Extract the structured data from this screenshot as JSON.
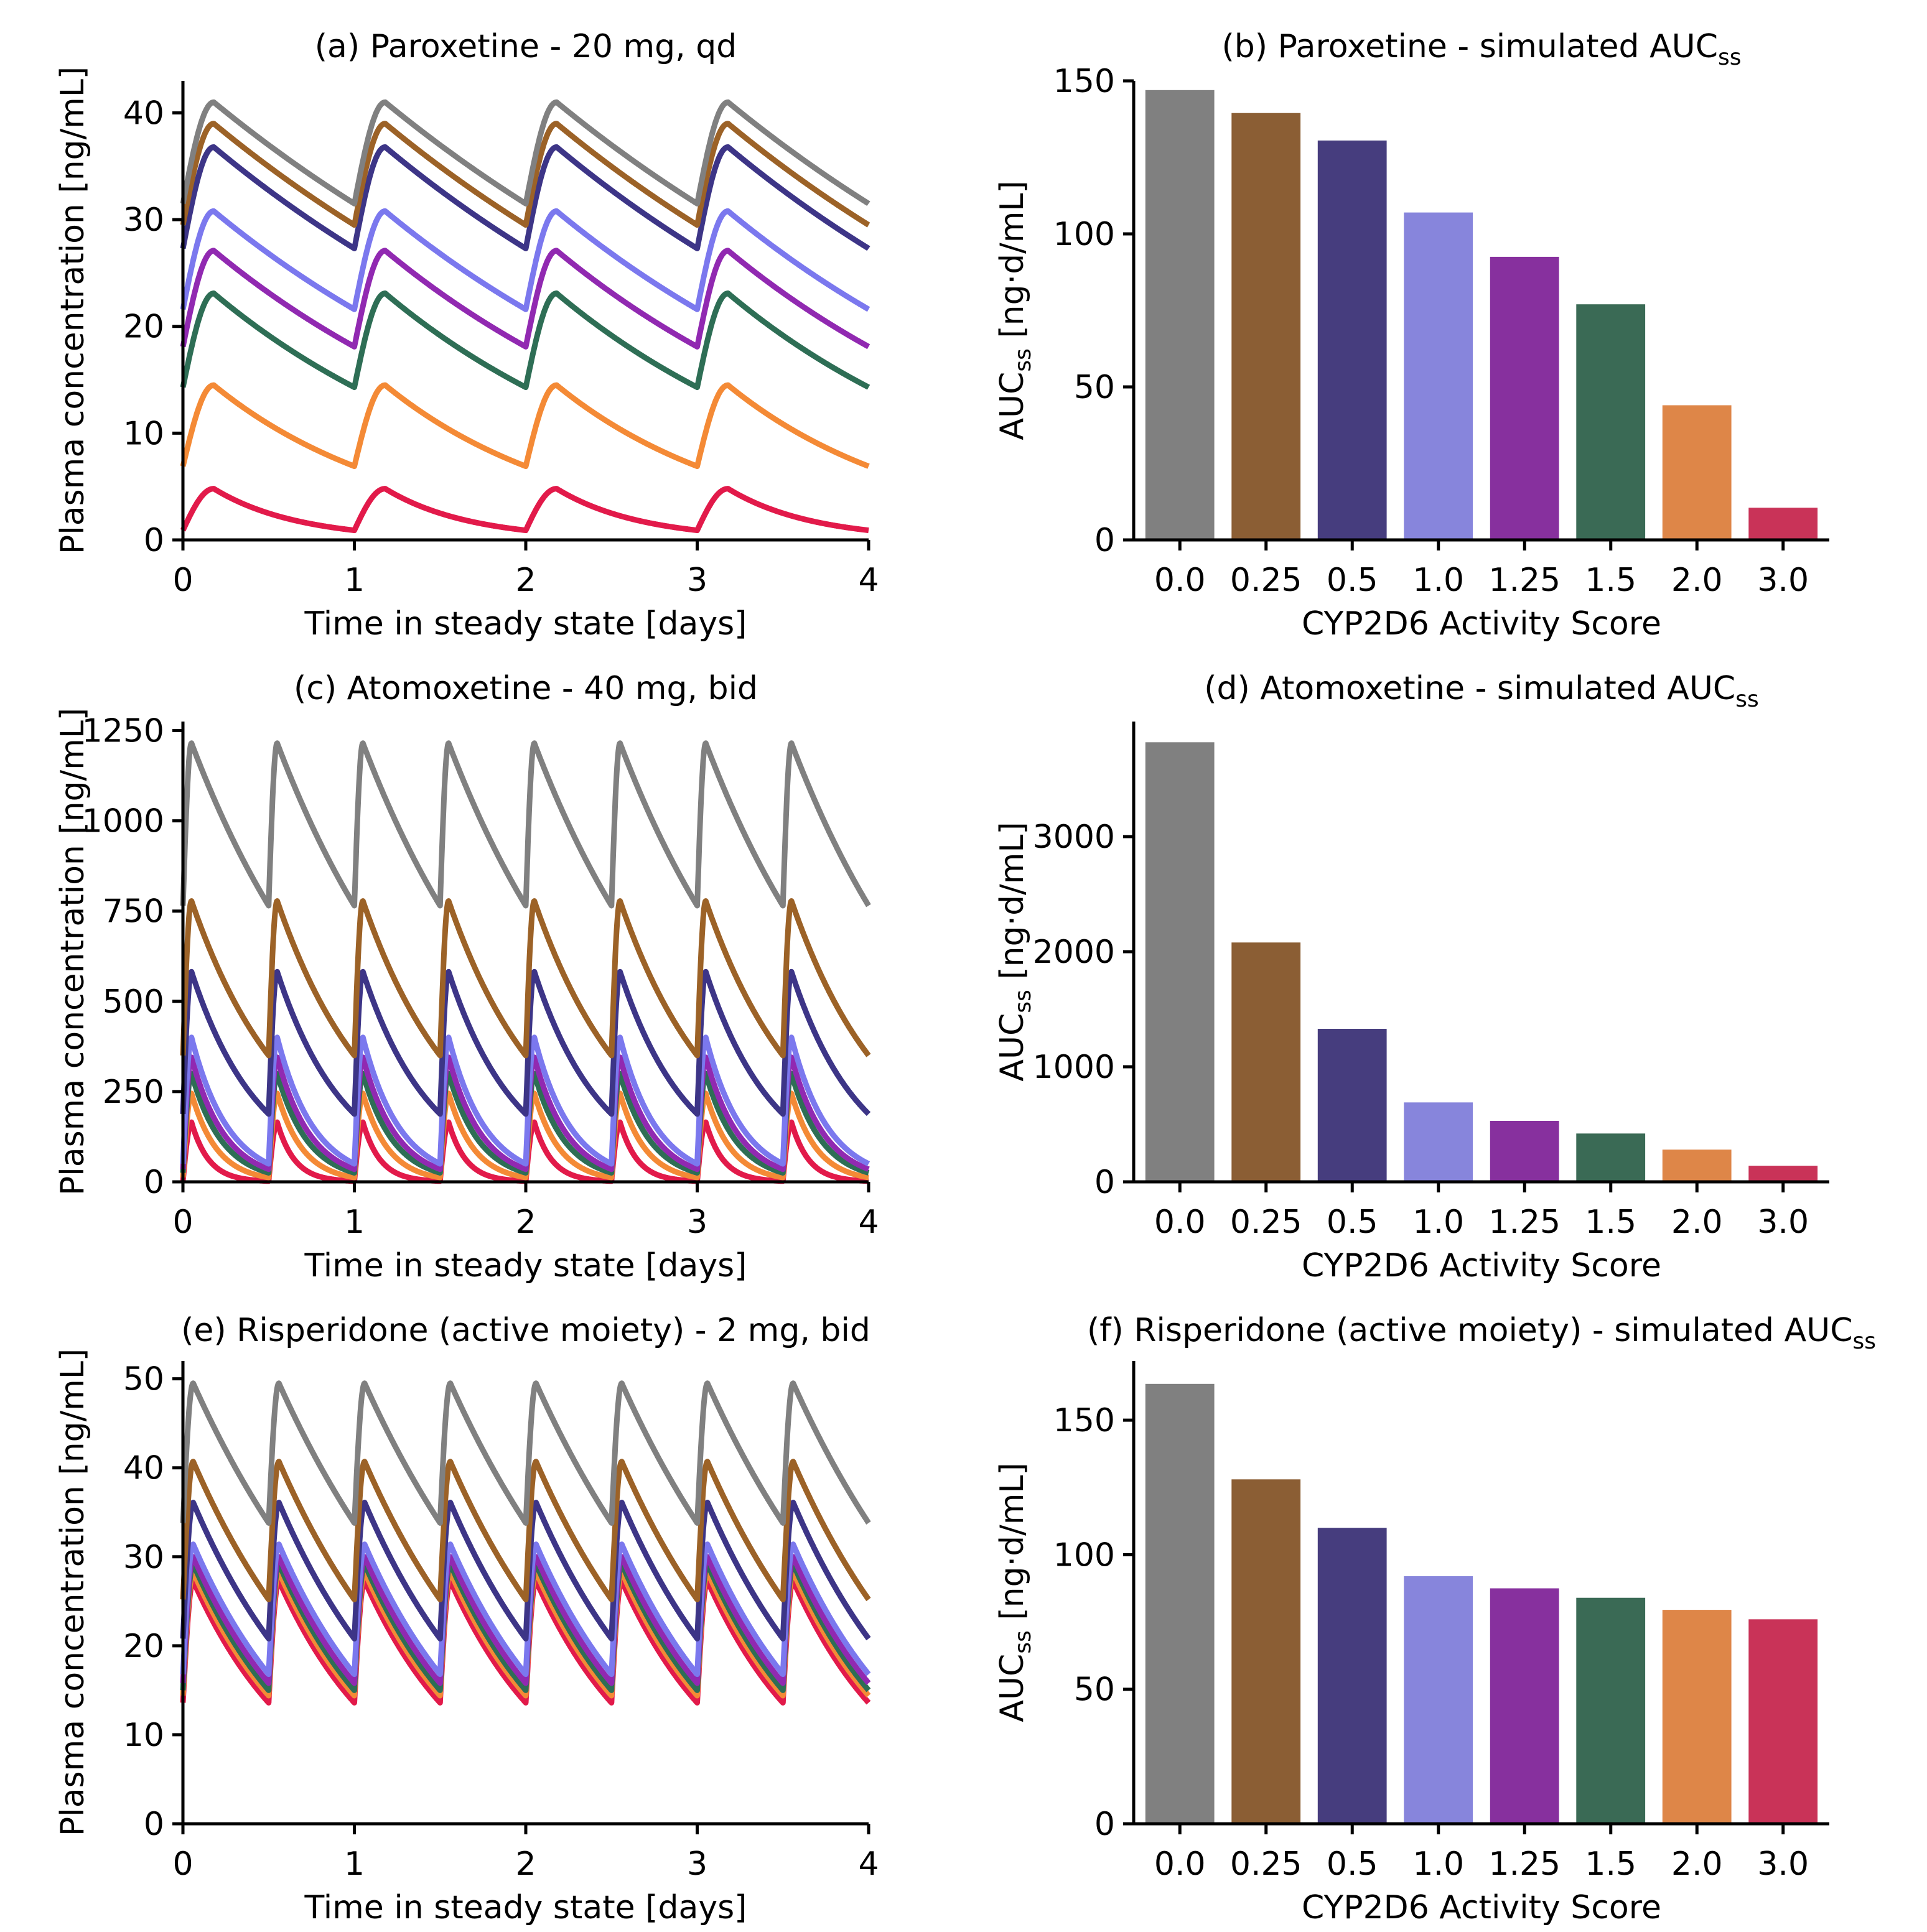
{
  "activity_scores": [
    "0.0",
    "0.25",
    "0.5",
    "1.0",
    "1.25",
    "1.5",
    "2.0",
    "3.0"
  ],
  "colors": {
    "bars": [
      "#808080",
      "#8b5e34",
      "#463d7e",
      "#8785dc",
      "#87309e",
      "#3a6a55",
      "#de8648",
      "#c93358"
    ],
    "lines": [
      "#808080",
      "#9c6227",
      "#3d3587",
      "#7b78ee",
      "#9129b1",
      "#2e6e55",
      "#f48a36",
      "#e21a4a"
    ]
  },
  "chart_data": [
    {
      "id": "a",
      "type": "line",
      "title": "(a) Paroxetine - 20 mg, qd",
      "xlabel": "Time in steady state [days]",
      "ylabel": "Plasma concentration [ng/mL]",
      "xlim": [
        0,
        4
      ],
      "ylim": [
        0,
        43
      ],
      "xticks": [
        "0",
        "1",
        "2",
        "3",
        "4"
      ],
      "yticks": [
        "0",
        "10",
        "20",
        "30",
        "40"
      ],
      "dosing_interval_days": 1,
      "peak_time_days": 0.18,
      "series": [
        {
          "name": "0.0",
          "peak": 41.0,
          "trough": 31.5
        },
        {
          "name": "0.25",
          "peak": 39.0,
          "trough": 29.5
        },
        {
          "name": "0.5",
          "peak": 36.8,
          "trough": 27.3
        },
        {
          "name": "1.0",
          "peak": 30.8,
          "trough": 21.6
        },
        {
          "name": "1.25",
          "peak": 27.1,
          "trough": 18.1
        },
        {
          "name": "1.5",
          "peak": 23.1,
          "trough": 14.3
        },
        {
          "name": "2.0",
          "peak": 14.5,
          "trough": 6.9
        },
        {
          "name": "3.0",
          "peak": 4.8,
          "trough": 0.9
        }
      ]
    },
    {
      "id": "b",
      "type": "bar",
      "title": "(b) Paroxetine - simulated AUC",
      "title_sub": "ss",
      "xlabel": "CYP2D6 Activity Score",
      "ylabel_main": "AUC",
      "ylabel_sub": "ss",
      "ylabel_rest": " [ng·d/mL]",
      "ylim": [
        0,
        150
      ],
      "yticks": [
        "0",
        "50",
        "100",
        "150"
      ],
      "values": [
        147,
        139.5,
        130.5,
        107,
        92.5,
        77,
        44,
        10.5
      ]
    },
    {
      "id": "c",
      "type": "line",
      "title": "(c) Atomoxetine - 40 mg, bid",
      "xlabel": "Time in steady state [days]",
      "ylabel": "Plasma concentration [ng/mL]",
      "xlim": [
        0,
        4
      ],
      "ylim": [
        0,
        1275
      ],
      "xticks": [
        "0",
        "1",
        "2",
        "3",
        "4"
      ],
      "yticks": [
        "0",
        "250",
        "500",
        "750",
        "1000",
        "1250"
      ],
      "dosing_interval_days": 0.5,
      "peak_time_days": 0.05,
      "series": [
        {
          "name": "0.0",
          "peak": 1215,
          "trough": 765
        },
        {
          "name": "0.25",
          "peak": 778,
          "trough": 350
        },
        {
          "name": "0.5",
          "peak": 582,
          "trough": 188
        },
        {
          "name": "1.0",
          "peak": 400,
          "trough": 50
        },
        {
          "name": "1.25",
          "peak": 345,
          "trough": 35
        },
        {
          "name": "1.5",
          "peak": 300,
          "trough": 25
        },
        {
          "name": "2.0",
          "peak": 245,
          "trough": 12
        },
        {
          "name": "3.0",
          "peak": 165,
          "trough": 2
        }
      ]
    },
    {
      "id": "d",
      "type": "bar",
      "title": "(d) Atomoxetine - simulated AUC",
      "title_sub": "ss",
      "xlabel": "CYP2D6 Activity Score",
      "ylabel_main": "AUC",
      "ylabel_sub": "ss",
      "ylabel_rest": " [ng·d/mL]",
      "ylim": [
        0,
        4000
      ],
      "yticks": [
        "0",
        "1000",
        "2000",
        "3000"
      ],
      "values": [
        3820,
        2080,
        1330,
        690,
        530,
        420,
        280,
        140
      ]
    },
    {
      "id": "e",
      "type": "line",
      "title": "(e) Risperidone (active moiety) - 2 mg, bid",
      "xlabel": "Time in steady state [days]",
      "ylabel": "Plasma concentration [ng/mL]",
      "xlim": [
        0,
        4
      ],
      "ylim": [
        0,
        52
      ],
      "xticks": [
        "0",
        "1",
        "2",
        "3",
        "4"
      ],
      "yticks": [
        "0",
        "10",
        "20",
        "30",
        "40",
        "50"
      ],
      "dosing_interval_days": 0.5,
      "peak_time_days": 0.06,
      "series": [
        {
          "name": "0.0",
          "peak": 49.5,
          "trough": 33.8
        },
        {
          "name": "0.25",
          "peak": 40.7,
          "trough": 25.2
        },
        {
          "name": "0.5",
          "peak": 36.1,
          "trough": 20.8
        },
        {
          "name": "1.0",
          "peak": 31.4,
          "trough": 16.8
        },
        {
          "name": "1.25",
          "peak": 30.0,
          "trough": 15.8
        },
        {
          "name": "1.5",
          "peak": 29.2,
          "trough": 15.0
        },
        {
          "name": "2.0",
          "peak": 28.3,
          "trough": 14.4
        },
        {
          "name": "3.0",
          "peak": 27.3,
          "trough": 13.6
        }
      ]
    },
    {
      "id": "f",
      "type": "bar",
      "title": "(f) Risperidone (active moiety) - simulated AUC",
      "title_sub": "ss",
      "xlabel": "CYP2D6 Activity Score",
      "ylabel_main": "AUC",
      "ylabel_sub": "ss",
      "ylabel_rest": " [ng·d/mL]",
      "ylim": [
        0,
        172
      ],
      "yticks": [
        "0",
        "50",
        "100",
        "150"
      ],
      "values": [
        163.5,
        128,
        110,
        92,
        87.5,
        84,
        79.5,
        76
      ]
    }
  ]
}
